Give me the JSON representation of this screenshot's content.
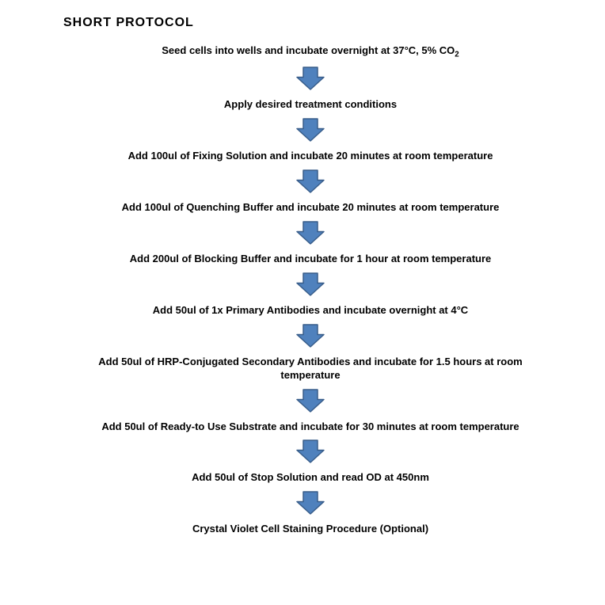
{
  "title": "SHORT PROTOCOL",
  "title_fontsize": 16,
  "title_color": "#000000",
  "step_fontsize": 13,
  "step_color": "#000000",
  "step_fontweight": "bold",
  "background_color": "#ffffff",
  "arrow": {
    "fill": "#4f81bd",
    "stroke": "#385d8a",
    "stroke_width": 1.5,
    "width": 36,
    "height": 30
  },
  "flow": {
    "type": "flowchart",
    "direction": "vertical",
    "steps": [
      {
        "text": "Seed cells into wells and incubate overnight at 37°C, 5% CO",
        "subscript": "2"
      },
      {
        "text": "Apply desired treatment conditions"
      },
      {
        "text": "Add 100ul of Fixing Solution and incubate 20 minutes at room temperature"
      },
      {
        "text": "Add 100ul of Quenching Buffer and incubate 20 minutes at room temperature"
      },
      {
        "text": "Add 200ul of Blocking Buffer and incubate for 1 hour at room temperature"
      },
      {
        "text": "Add 50ul of 1x Primary Antibodies and incubate overnight at 4°C"
      },
      {
        "text": "Add 50ul of HRP-Conjugated Secondary Antibodies and incubate for 1.5 hours at room temperature"
      },
      {
        "text": "Add 50ul of Ready-to Use Substrate and incubate for 30 minutes at room temperature"
      },
      {
        "text": "Add 50ul of Stop Solution and read OD at 450nm"
      },
      {
        "text": "Crystal Violet Cell Staining Procedure (Optional)"
      }
    ]
  }
}
